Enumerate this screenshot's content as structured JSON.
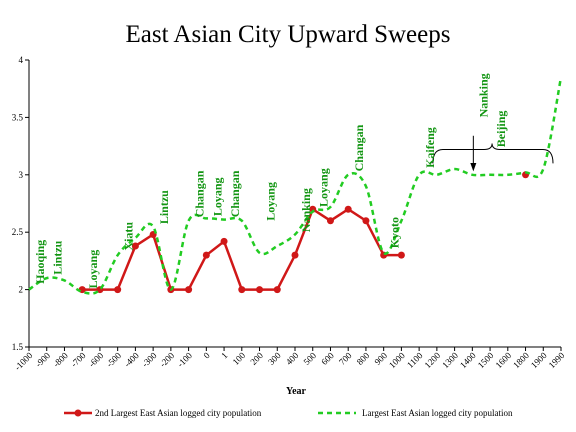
{
  "chart_data": {
    "type": "line",
    "title": "East Asian City Upward Sweeps",
    "xlabel": "Year",
    "ylabel": "",
    "ylim": [
      1.5,
      4
    ],
    "yticks": [
      "1.5",
      "2",
      "2.5",
      "3",
      "3.5",
      "4"
    ],
    "categories": [
      "-1000",
      "-900",
      "-800",
      "-700",
      "-600",
      "-500",
      "-400",
      "-300",
      "-200",
      "-100",
      "0",
      "1",
      "100",
      "200",
      "300",
      "400",
      "500",
      "600",
      "700",
      "800",
      "900",
      "1000",
      "1100",
      "1200",
      "1300",
      "1400",
      "1500",
      "1600",
      "1800",
      "1900",
      "1990"
    ],
    "grid": false,
    "legend_position": "bottom",
    "series": [
      {
        "name": "2nd Largest East Asian logged city population",
        "color": "#d01818",
        "style": "solid-with-markers",
        "values": [
          null,
          null,
          null,
          2.0,
          2.0,
          2.0,
          2.38,
          2.48,
          2.0,
          2.0,
          2.3,
          2.42,
          2.0,
          2.0,
          2.0,
          2.3,
          2.7,
          2.6,
          2.7,
          2.6,
          2.3,
          2.3,
          null,
          null,
          null,
          null,
          null,
          null,
          null,
          null,
          null
        ],
        "extra_points": [
          {
            "x": "1800",
            "value": 3.0
          }
        ]
      },
      {
        "name": "Largest East Asian logged city population",
        "color": "#22cc22",
        "style": "dashed",
        "values": [
          2.0,
          2.1,
          2.08,
          1.98,
          2.0,
          2.3,
          2.45,
          2.55,
          2.0,
          2.6,
          2.62,
          2.61,
          2.6,
          2.32,
          2.38,
          2.48,
          2.68,
          2.72,
          3.0,
          2.9,
          2.32,
          2.6,
          3.0,
          3.0,
          3.05,
          3.0,
          3.0,
          3.0,
          3.02,
          3.05,
          3.85
        ]
      }
    ],
    "annotations": [
      {
        "text": "Haoqing",
        "x": "-1000",
        "y": 2.05
      },
      {
        "text": "Lintzu",
        "x": "-900",
        "y": 2.13
      },
      {
        "text": "Loyang",
        "x": "-700",
        "y": 2.01
      },
      {
        "text": "Xiatu",
        "x": "-500",
        "y": 2.34
      },
      {
        "text": "Lintzu",
        "x": "-300",
        "y": 2.57
      },
      {
        "text": "Changan",
        "x": "-100",
        "y": 2.63
      },
      {
        "text": "Loyang",
        "x": "0",
        "y": 2.64
      },
      {
        "text": "Changan",
        "x": "1",
        "y": 2.63
      },
      {
        "text": "Loyang",
        "x": "200",
        "y": 2.6
      },
      {
        "text": "Nanking",
        "x": "400",
        "y": 2.5
      },
      {
        "text": "Loyang",
        "x": "500",
        "y": 2.72
      },
      {
        "text": "Changan",
        "x": "700",
        "y": 3.03
      },
      {
        "text": "Kyoto",
        "x": "900",
        "y": 2.36
      },
      {
        "text": "Kaifeng",
        "x": "1100",
        "y": 3.06
      },
      {
        "text": "Nanking",
        "x": "1400",
        "y": 3.5
      },
      {
        "text": "Beijing",
        "x": "1500",
        "y": 3.24
      }
    ]
  }
}
